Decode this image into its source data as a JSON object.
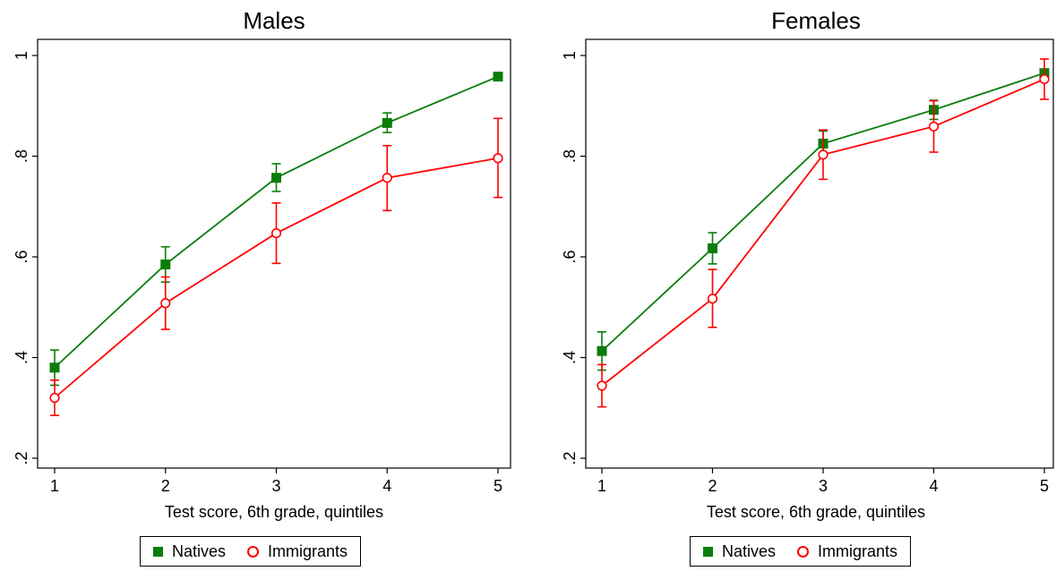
{
  "colors": {
    "natives": "#0a7d0a",
    "immigrants": "#ff0000"
  },
  "chart_data": [
    {
      "type": "line",
      "title": "Males",
      "xlabel": "Test score, 6th grade, quintiles",
      "ylabel": "",
      "x": [
        1,
        2,
        3,
        4,
        5
      ],
      "xticks": [
        "1",
        "2",
        "3",
        "4",
        "5"
      ],
      "yticks": [
        ".2",
        ".4",
        ".6",
        ".8",
        "1"
      ],
      "ytick_values": [
        0.2,
        0.4,
        0.6,
        0.8,
        1.0
      ],
      "xlim": [
        1,
        5
      ],
      "ylim": [
        0.2,
        1.0
      ],
      "grid": false,
      "legend_position": "bottom",
      "series": [
        {
          "name": "Natives",
          "marker": "filled-square",
          "values": [
            0.38,
            0.585,
            0.757,
            0.866,
            0.958
          ],
          "ci_low": [
            0.345,
            0.55,
            0.73,
            0.847,
            0.952
          ],
          "ci_high": [
            0.415,
            0.62,
            0.785,
            0.886,
            0.964
          ]
        },
        {
          "name": "Immigrants",
          "marker": "hollow-circle",
          "values": [
            0.32,
            0.508,
            0.647,
            0.757,
            0.796
          ],
          "ci_low": [
            0.285,
            0.456,
            0.587,
            0.692,
            0.718
          ],
          "ci_high": [
            0.355,
            0.56,
            0.707,
            0.821,
            0.875
          ]
        }
      ]
    },
    {
      "type": "line",
      "title": "Females",
      "xlabel": "Test score, 6th grade, quintiles",
      "ylabel": "",
      "x": [
        1,
        2,
        3,
        4,
        5
      ],
      "xticks": [
        "1",
        "2",
        "3",
        "4",
        "5"
      ],
      "yticks": [
        ".2",
        ".4",
        ".6",
        ".8",
        "1"
      ],
      "ytick_values": [
        0.2,
        0.4,
        0.6,
        0.8,
        1.0
      ],
      "xlim": [
        1,
        5
      ],
      "ylim": [
        0.2,
        1.0
      ],
      "grid": false,
      "legend_position": "bottom",
      "series": [
        {
          "name": "Natives",
          "marker": "filled-square",
          "values": [
            0.413,
            0.617,
            0.825,
            0.892,
            0.965
          ],
          "ci_low": [
            0.375,
            0.586,
            0.8,
            0.873,
            0.96
          ],
          "ci_high": [
            0.451,
            0.648,
            0.85,
            0.911,
            0.97
          ]
        },
        {
          "name": "Immigrants",
          "marker": "hollow-circle",
          "values": [
            0.344,
            0.517,
            0.803,
            0.859,
            0.953
          ],
          "ci_low": [
            0.302,
            0.46,
            0.754,
            0.808,
            0.913
          ],
          "ci_high": [
            0.386,
            0.575,
            0.852,
            0.91,
            0.993
          ]
        }
      ]
    }
  ]
}
